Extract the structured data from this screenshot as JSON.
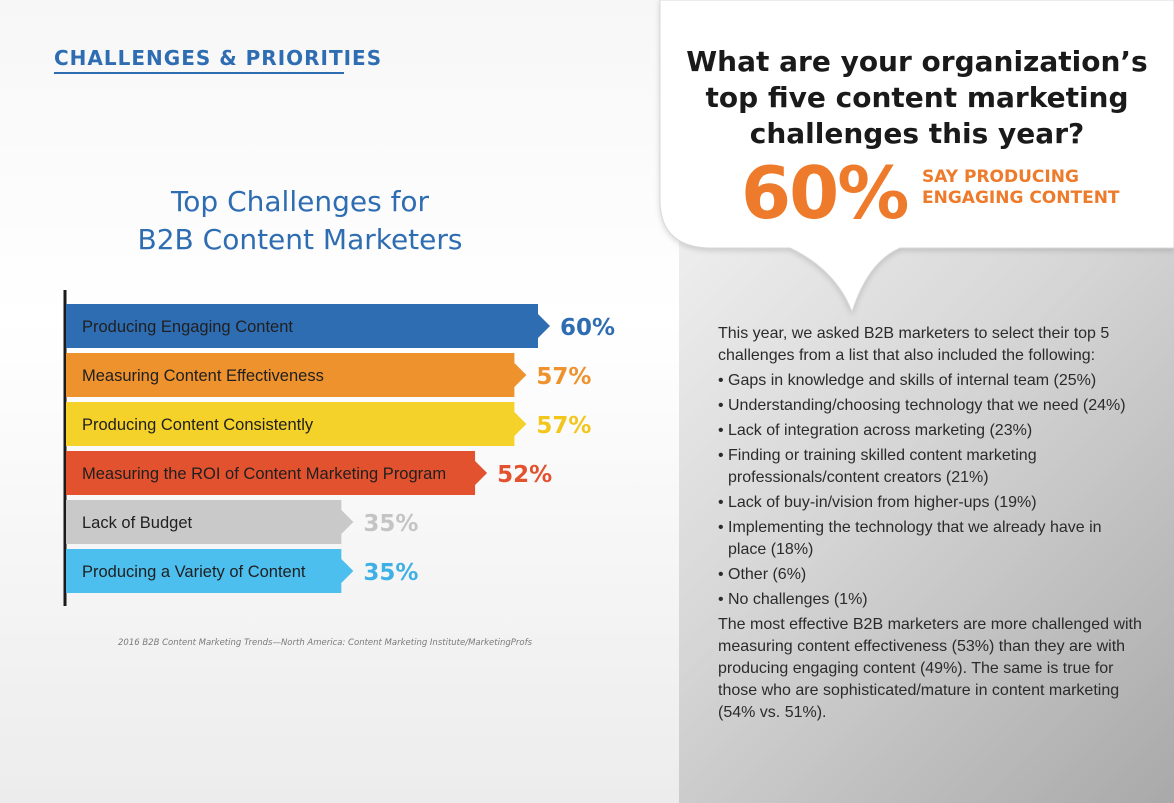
{
  "header": {
    "section_title": "CHALLENGES & PRIORITIES"
  },
  "chart_data": {
    "type": "bar",
    "orientation": "horizontal",
    "title": "Top Challenges for B2B Content Marketers",
    "title_lines": [
      "Top Challenges for",
      "B2B Content Marketers"
    ],
    "xlabel": "",
    "ylabel": "",
    "xlim": [
      0,
      60
    ],
    "grid": false,
    "categories": [
      "Producing Engaging Content",
      "Measuring Content Effectiveness",
      "Producing Content Consistently",
      "Measuring the ROI of Content Marketing Program",
      "Lack of Budget",
      "Producing a Variety of Content"
    ],
    "values": [
      60,
      57,
      57,
      52,
      35,
      35
    ],
    "value_labels": [
      "60%",
      "57%",
      "57%",
      "52%",
      "35%",
      "35%"
    ],
    "bar_colors": [
      "#2f6db3",
      "#ee922e",
      "#f5d22a",
      "#e3522f",
      "#c9c9c9",
      "#4cbfef"
    ],
    "label_colors": [
      "#2f6db3",
      "#ee922e",
      "#f2c61b",
      "#e3522f",
      "#c4c4c4",
      "#3fb0e6"
    ],
    "source": "2016 B2B Content Marketing Trends—North America: Content Marketing Institute/MarketingProfs"
  },
  "callout": {
    "question": "What are your organization’s top five content marketing challenges this year?",
    "big_percent": "60%",
    "big_label": "SAY PRODUCING ENGAGING CONTENT",
    "accent_color": "#ee7b2b"
  },
  "details": {
    "intro": "This year, we asked B2B marketers to select their top 5 challenges from a list that also included the following:",
    "items": [
      "Gaps in knowledge and skills of internal team (25%)",
      "Understanding/choosing technology that we need (24%)",
      "Lack of integration across marketing (23%)",
      "Finding or training skilled content marketing professionals/content creators (21%)",
      "Lack of buy-in/vision from higher-ups (19%)",
      "Implementing the technology that we already have in place (18%)",
      "Other (6%)",
      "No challenges (1%)"
    ],
    "conclusion": "The most effective B2B marketers are more challenged with measuring content effectiveness (53%) than they are with producing engaging content (49%). The same is true for those who are sophisticated/mature in content marketing (54% vs. 51%)."
  }
}
